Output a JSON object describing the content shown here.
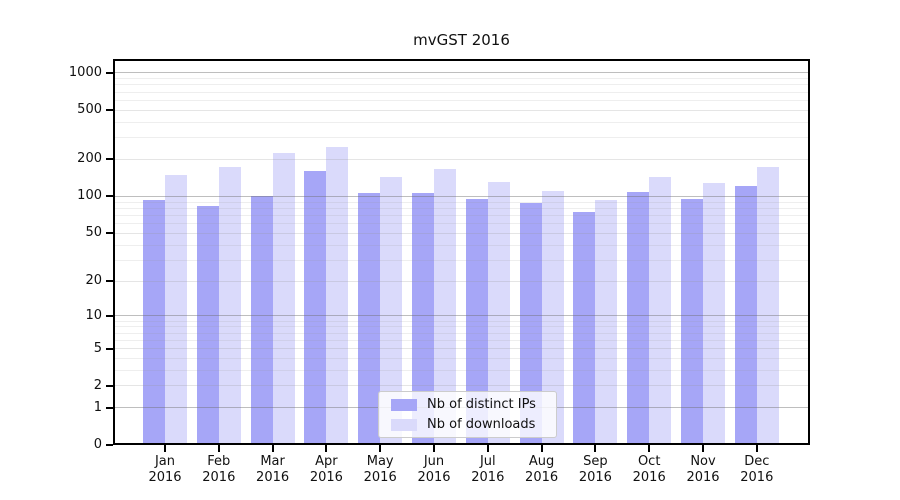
{
  "chart_data": {
    "type": "bar",
    "title": "mvGST 2016",
    "categories": [
      "Jan",
      "Feb",
      "Mar",
      "Apr",
      "May",
      "Jun",
      "Jul",
      "Aug",
      "Sep",
      "Oct",
      "Nov",
      "Dec"
    ],
    "category_year": "2016",
    "series": [
      {
        "name": "Nb of distinct IPs",
        "color": "#a6a6f7",
        "values": [
          94,
          83,
          101,
          160,
          106,
          107,
          95,
          89,
          75,
          108,
          95,
          122
        ]
      },
      {
        "name": "Nb of downloads",
        "color": "#dadafb",
        "values": [
          151,
          175,
          227,
          254,
          143,
          167,
          131,
          111,
          94,
          143,
          128,
          175
        ]
      }
    ],
    "yscale": "log10(value+1)",
    "yticks": [
      0,
      1,
      2,
      5,
      10,
      20,
      50,
      100,
      200,
      500,
      1000
    ],
    "y_minor_ticks": [
      3,
      4,
      6,
      7,
      8,
      9,
      30,
      40,
      60,
      70,
      80,
      90,
      300,
      400,
      600,
      700,
      800,
      900
    ],
    "ylim": [
      0,
      1300
    ],
    "grid": "major-and-minor-drawn-above-bars",
    "colors": {
      "grid_decade": "rgba(110,110,110,0.45)",
      "grid_major": "rgba(150,150,150,0.25)",
      "grid_minor": "rgba(150,150,150,0.16)",
      "axis": "#000000"
    },
    "legend_position": "lower center"
  }
}
